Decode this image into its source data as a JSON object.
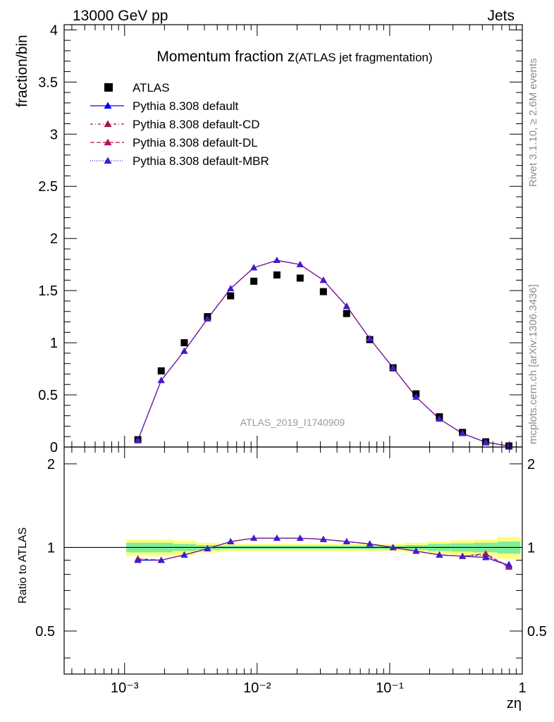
{
  "header": {
    "left": "13000 GeV pp",
    "right": "Jets"
  },
  "side": {
    "rivet": "Rivet 3.1.10, ≥ 2.6M events",
    "mcplots": "mcplots.cern.ch [arXiv:1306.3436]"
  },
  "chart_data": {
    "type": "line",
    "title_main": "Momentum fraction z",
    "title_sub": "(ATLAS jet fragmentation)",
    "analysis_label": "ATLAS_2019_I1740909",
    "xlabel": "zη",
    "xscale": "log",
    "xlim": [
      0.00035,
      1.0
    ],
    "x_tick_labels": [
      "10⁻³",
      "10⁻²",
      "10⁻¹",
      "1"
    ],
    "main": {
      "ylabel": "fraction/bin",
      "ylim": [
        0,
        4.05
      ],
      "y_ticks": [
        0,
        0.5,
        1,
        1.5,
        2,
        2.5,
        3,
        3.5,
        4
      ],
      "y_tick_labels": [
        "0",
        "0.5",
        "1",
        "1.5",
        "2",
        "2.5",
        "3",
        "3.5",
        "4"
      ]
    },
    "ratio": {
      "ylabel": "Ratio to ATLAS",
      "ylim": [
        0.35,
        2.3
      ],
      "y_ticks": [
        0.5,
        1,
        2
      ],
      "y_tick_labels": [
        "0.5",
        "1",
        "2"
      ]
    },
    "x": [
      0.00126,
      0.00189,
      0.00282,
      0.00422,
      0.00631,
      0.00944,
      0.0141,
      0.0211,
      0.0316,
      0.0473,
      0.0707,
      0.106,
      0.158,
      0.237,
      0.354,
      0.53,
      0.793
    ],
    "series": [
      {
        "name": "ATLAS",
        "marker": "square",
        "color": "#000000",
        "values": [
          0.07,
          0.73,
          1.0,
          1.25,
          1.45,
          1.59,
          1.65,
          1.62,
          1.49,
          1.28,
          1.03,
          0.76,
          0.51,
          0.29,
          0.14,
          0.05,
          0.01
        ],
        "ratio": [
          1,
          1,
          1,
          1,
          1,
          1,
          1,
          1,
          1,
          1,
          1,
          1,
          1,
          1,
          1,
          1,
          1
        ]
      },
      {
        "name": "Pythia 8.308 default",
        "marker": "triangle",
        "color": "#0000ff",
        "dash": "",
        "values": [
          0.065,
          0.64,
          0.92,
          1.23,
          1.52,
          1.72,
          1.79,
          1.75,
          1.6,
          1.35,
          1.04,
          0.76,
          0.48,
          0.27,
          0.13,
          0.045,
          0.01
        ],
        "ratio": [
          0.9,
          0.9,
          0.94,
          0.99,
          1.05,
          1.08,
          1.08,
          1.08,
          1.07,
          1.05,
          1.03,
          1.0,
          0.97,
          0.94,
          0.93,
          0.92,
          0.86
        ]
      },
      {
        "name": "Pythia 8.308 default-CD",
        "marker": "triangle",
        "color": "#a0163c",
        "dash": "4,3,1,3",
        "values": [
          0.066,
          0.64,
          0.92,
          1.23,
          1.52,
          1.72,
          1.79,
          1.75,
          1.6,
          1.35,
          1.04,
          0.76,
          0.48,
          0.27,
          0.13,
          0.046,
          0.01
        ],
        "ratio": [
          0.91,
          0.9,
          0.94,
          0.99,
          1.05,
          1.08,
          1.08,
          1.08,
          1.07,
          1.05,
          1.03,
          1.0,
          0.97,
          0.94,
          0.93,
          0.94,
          0.85
        ]
      },
      {
        "name": "Pythia 8.308 default-DL",
        "marker": "triangle",
        "color": "#b4145a",
        "dash": "6,3",
        "values": [
          0.066,
          0.64,
          0.92,
          1.23,
          1.52,
          1.72,
          1.79,
          1.75,
          1.6,
          1.35,
          1.04,
          0.76,
          0.48,
          0.27,
          0.13,
          0.047,
          0.01
        ],
        "ratio": [
          0.91,
          0.9,
          0.94,
          0.99,
          1.05,
          1.08,
          1.08,
          1.08,
          1.07,
          1.05,
          1.03,
          1.0,
          0.97,
          0.94,
          0.93,
          0.95,
          0.85
        ]
      },
      {
        "name": "Pythia 8.308 default-MBR",
        "marker": "triangle",
        "color": "#3c1ed2",
        "dash": "1,2",
        "values": [
          0.065,
          0.64,
          0.92,
          1.23,
          1.52,
          1.72,
          1.79,
          1.75,
          1.6,
          1.35,
          1.04,
          0.76,
          0.48,
          0.27,
          0.13,
          0.045,
          0.01
        ],
        "ratio": [
          0.9,
          0.9,
          0.94,
          0.99,
          1.05,
          1.08,
          1.08,
          1.08,
          1.07,
          1.05,
          1.03,
          1.0,
          0.97,
          0.94,
          0.93,
          0.92,
          0.87
        ]
      }
    ],
    "uncertainty_bands": {
      "outer_color": "#ffff80",
      "inner_color": "#80ee99",
      "outer_halfwidth": [
        0.07,
        0.07,
        0.06,
        0.04,
        0.03,
        0.03,
        0.03,
        0.03,
        0.03,
        0.03,
        0.03,
        0.03,
        0.04,
        0.05,
        0.06,
        0.07,
        0.09
      ],
      "inner_halfwidth": [
        0.04,
        0.04,
        0.03,
        0.02,
        0.015,
        0.015,
        0.015,
        0.015,
        0.015,
        0.015,
        0.015,
        0.015,
        0.02,
        0.03,
        0.035,
        0.04,
        0.05
      ]
    },
    "legend_position": "top-left",
    "grid": false
  }
}
